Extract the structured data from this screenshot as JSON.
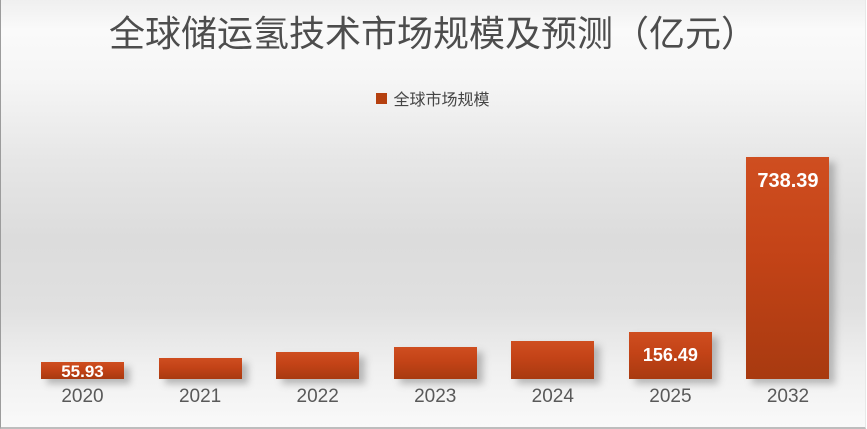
{
  "title": "全球储运氢技术市场规模及预测（亿元）",
  "legend": {
    "label": "全球市场规模",
    "swatch_color": "#b5400f"
  },
  "colors": {
    "bar_top": "#cf4e20",
    "bar_bottom": "#a83a10",
    "bar_label_text": "#ffffff",
    "axis_label_text": "#595959",
    "title_text": "#4d4d4d"
  },
  "chart_data": {
    "type": "bar",
    "title": "全球储运氢技术市场规模及预测（亿元）",
    "unit": "亿元",
    "legend": [
      "全球市场规模"
    ],
    "legend_position": "top",
    "grid": false,
    "ylim": [
      0,
      760
    ],
    "categories": [
      "2020",
      "2021",
      "2022",
      "2023",
      "2024",
      "2025",
      "2032"
    ],
    "values": [
      55.93,
      70,
      90,
      106,
      127,
      156.49,
      738.39
    ],
    "data_labels": [
      "55.93",
      "",
      "",
      "",
      "",
      "156.49",
      "738.39"
    ]
  }
}
